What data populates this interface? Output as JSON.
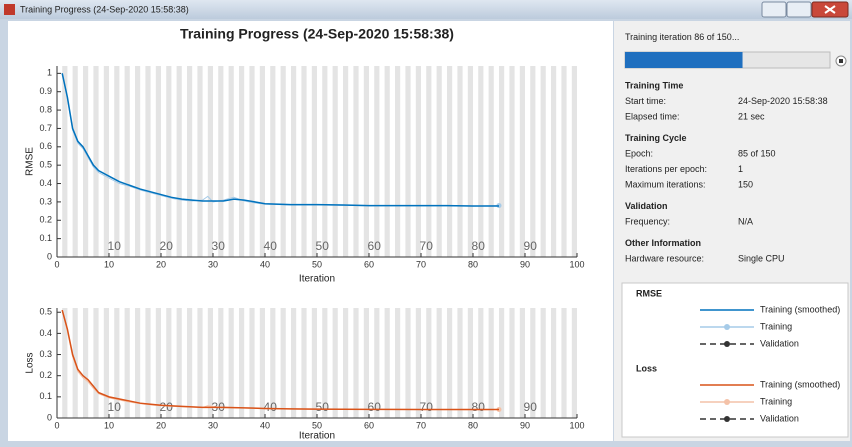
{
  "window": {
    "title": "Training Progress (24-Sep-2020 15:58:38)"
  },
  "panel_title": "Training Progress (24-Sep-2020 15:58:38)",
  "progress": {
    "prefix": "Training iteration",
    "current": 86,
    "of": "of",
    "total": 150,
    "suffix": "..."
  },
  "info": [
    {
      "title": "Training Time",
      "rows": [
        [
          "Start time:",
          "24-Sep-2020 15:58:38"
        ],
        [
          "Elapsed time:",
          "21 sec"
        ]
      ]
    },
    {
      "title": "Training Cycle",
      "rows": [
        [
          "Epoch:",
          "85 of 150"
        ],
        [
          "Iterations per epoch:",
          "1"
        ],
        [
          "Maximum iterations:",
          "150"
        ]
      ]
    },
    {
      "title": "Validation",
      "rows": [
        [
          "Frequency:",
          "N/A"
        ]
      ]
    },
    {
      "title": "Other Information",
      "rows": [
        [
          "Hardware resource:",
          "Single CPU"
        ]
      ]
    }
  ],
  "chart_data": [
    {
      "type": "line",
      "ylabel": "RMSE",
      "xlabel": "Iteration",
      "xlim": [
        0,
        100
      ],
      "xticks": [
        0,
        10,
        20,
        30,
        40,
        50,
        60,
        70,
        80,
        90,
        100
      ],
      "ylim": [
        0,
        1.04
      ],
      "yticks": [
        0,
        0.1,
        0.2,
        0.3,
        0.4,
        0.5,
        0.6,
        0.7,
        0.8,
        0.9,
        1
      ],
      "epoch_labels": [
        10,
        20,
        30,
        40,
        50,
        60,
        70,
        80,
        90
      ],
      "series": [
        {
          "name": "Training (smoothed)",
          "color": "#0072bd",
          "style": "line",
          "x": [
            1,
            2,
            3,
            4,
            5,
            6,
            7,
            8,
            10,
            12,
            14,
            16,
            18,
            20,
            22,
            24,
            26,
            28,
            30,
            32,
            34,
            36,
            38,
            40,
            45,
            50,
            55,
            60,
            65,
            70,
            75,
            80,
            85
          ],
          "values": [
            1.0,
            0.87,
            0.7,
            0.63,
            0.6,
            0.55,
            0.5,
            0.47,
            0.44,
            0.41,
            0.39,
            0.37,
            0.355,
            0.34,
            0.325,
            0.315,
            0.31,
            0.305,
            0.305,
            0.305,
            0.315,
            0.31,
            0.3,
            0.29,
            0.285,
            0.285,
            0.283,
            0.28,
            0.28,
            0.28,
            0.28,
            0.278,
            0.278
          ]
        },
        {
          "name": "Training",
          "color": "#a6cbe8",
          "style": "line-marker",
          "x": [
            1,
            2,
            3,
            4,
            5,
            6,
            7,
            8,
            10,
            12,
            14,
            16,
            18,
            20,
            22,
            24,
            26,
            28,
            29,
            30,
            32,
            34,
            36,
            38,
            40,
            45,
            50,
            55,
            60,
            65,
            70,
            75,
            80,
            85
          ],
          "values": [
            1.0,
            0.86,
            0.69,
            0.62,
            0.59,
            0.54,
            0.49,
            0.46,
            0.43,
            0.4,
            0.385,
            0.365,
            0.35,
            0.335,
            0.32,
            0.31,
            0.305,
            0.31,
            0.33,
            0.3,
            0.31,
            0.325,
            0.305,
            0.295,
            0.288,
            0.283,
            0.284,
            0.281,
            0.279,
            0.28,
            0.279,
            0.279,
            0.277,
            0.28
          ]
        },
        {
          "name": "Validation",
          "color": "#333333",
          "style": "dashed-marker",
          "x": [],
          "values": []
        }
      ]
    },
    {
      "type": "line",
      "ylabel": "Loss",
      "xlabel": "Iteration",
      "xlim": [
        0,
        100
      ],
      "xticks": [
        0,
        10,
        20,
        30,
        40,
        50,
        60,
        70,
        80,
        90,
        100
      ],
      "ylim": [
        0,
        0.52
      ],
      "yticks": [
        0,
        0.1,
        0.2,
        0.3,
        0.4,
        0.5
      ],
      "epoch_labels": [
        10,
        20,
        30,
        40,
        50,
        60,
        70,
        80,
        90
      ],
      "series": [
        {
          "name": "Training (smoothed)",
          "color": "#d95319",
          "style": "line",
          "x": [
            1,
            2,
            3,
            4,
            5,
            6,
            7,
            8,
            10,
            12,
            14,
            16,
            18,
            20,
            24,
            28,
            32,
            36,
            40,
            45,
            50,
            60,
            70,
            80,
            85
          ],
          "values": [
            0.51,
            0.42,
            0.3,
            0.23,
            0.2,
            0.18,
            0.15,
            0.12,
            0.1,
            0.09,
            0.08,
            0.07,
            0.065,
            0.06,
            0.055,
            0.05,
            0.05,
            0.048,
            0.045,
            0.043,
            0.042,
            0.041,
            0.04,
            0.04,
            0.04
          ]
        },
        {
          "name": "Training",
          "color": "#f4c2a8",
          "style": "line-marker",
          "x": [
            1,
            2,
            3,
            4,
            5,
            6,
            7,
            8,
            10,
            12,
            14,
            16,
            18,
            20,
            24,
            28,
            29,
            32,
            36,
            40,
            45,
            50,
            60,
            70,
            80,
            85
          ],
          "values": [
            0.51,
            0.41,
            0.29,
            0.22,
            0.19,
            0.17,
            0.14,
            0.115,
            0.095,
            0.085,
            0.075,
            0.068,
            0.062,
            0.058,
            0.053,
            0.05,
            0.058,
            0.048,
            0.047,
            0.044,
            0.042,
            0.041,
            0.04,
            0.04,
            0.039,
            0.04
          ]
        },
        {
          "name": "Validation",
          "color": "#333333",
          "style": "dashed-marker",
          "x": [],
          "values": []
        }
      ]
    }
  ]
}
